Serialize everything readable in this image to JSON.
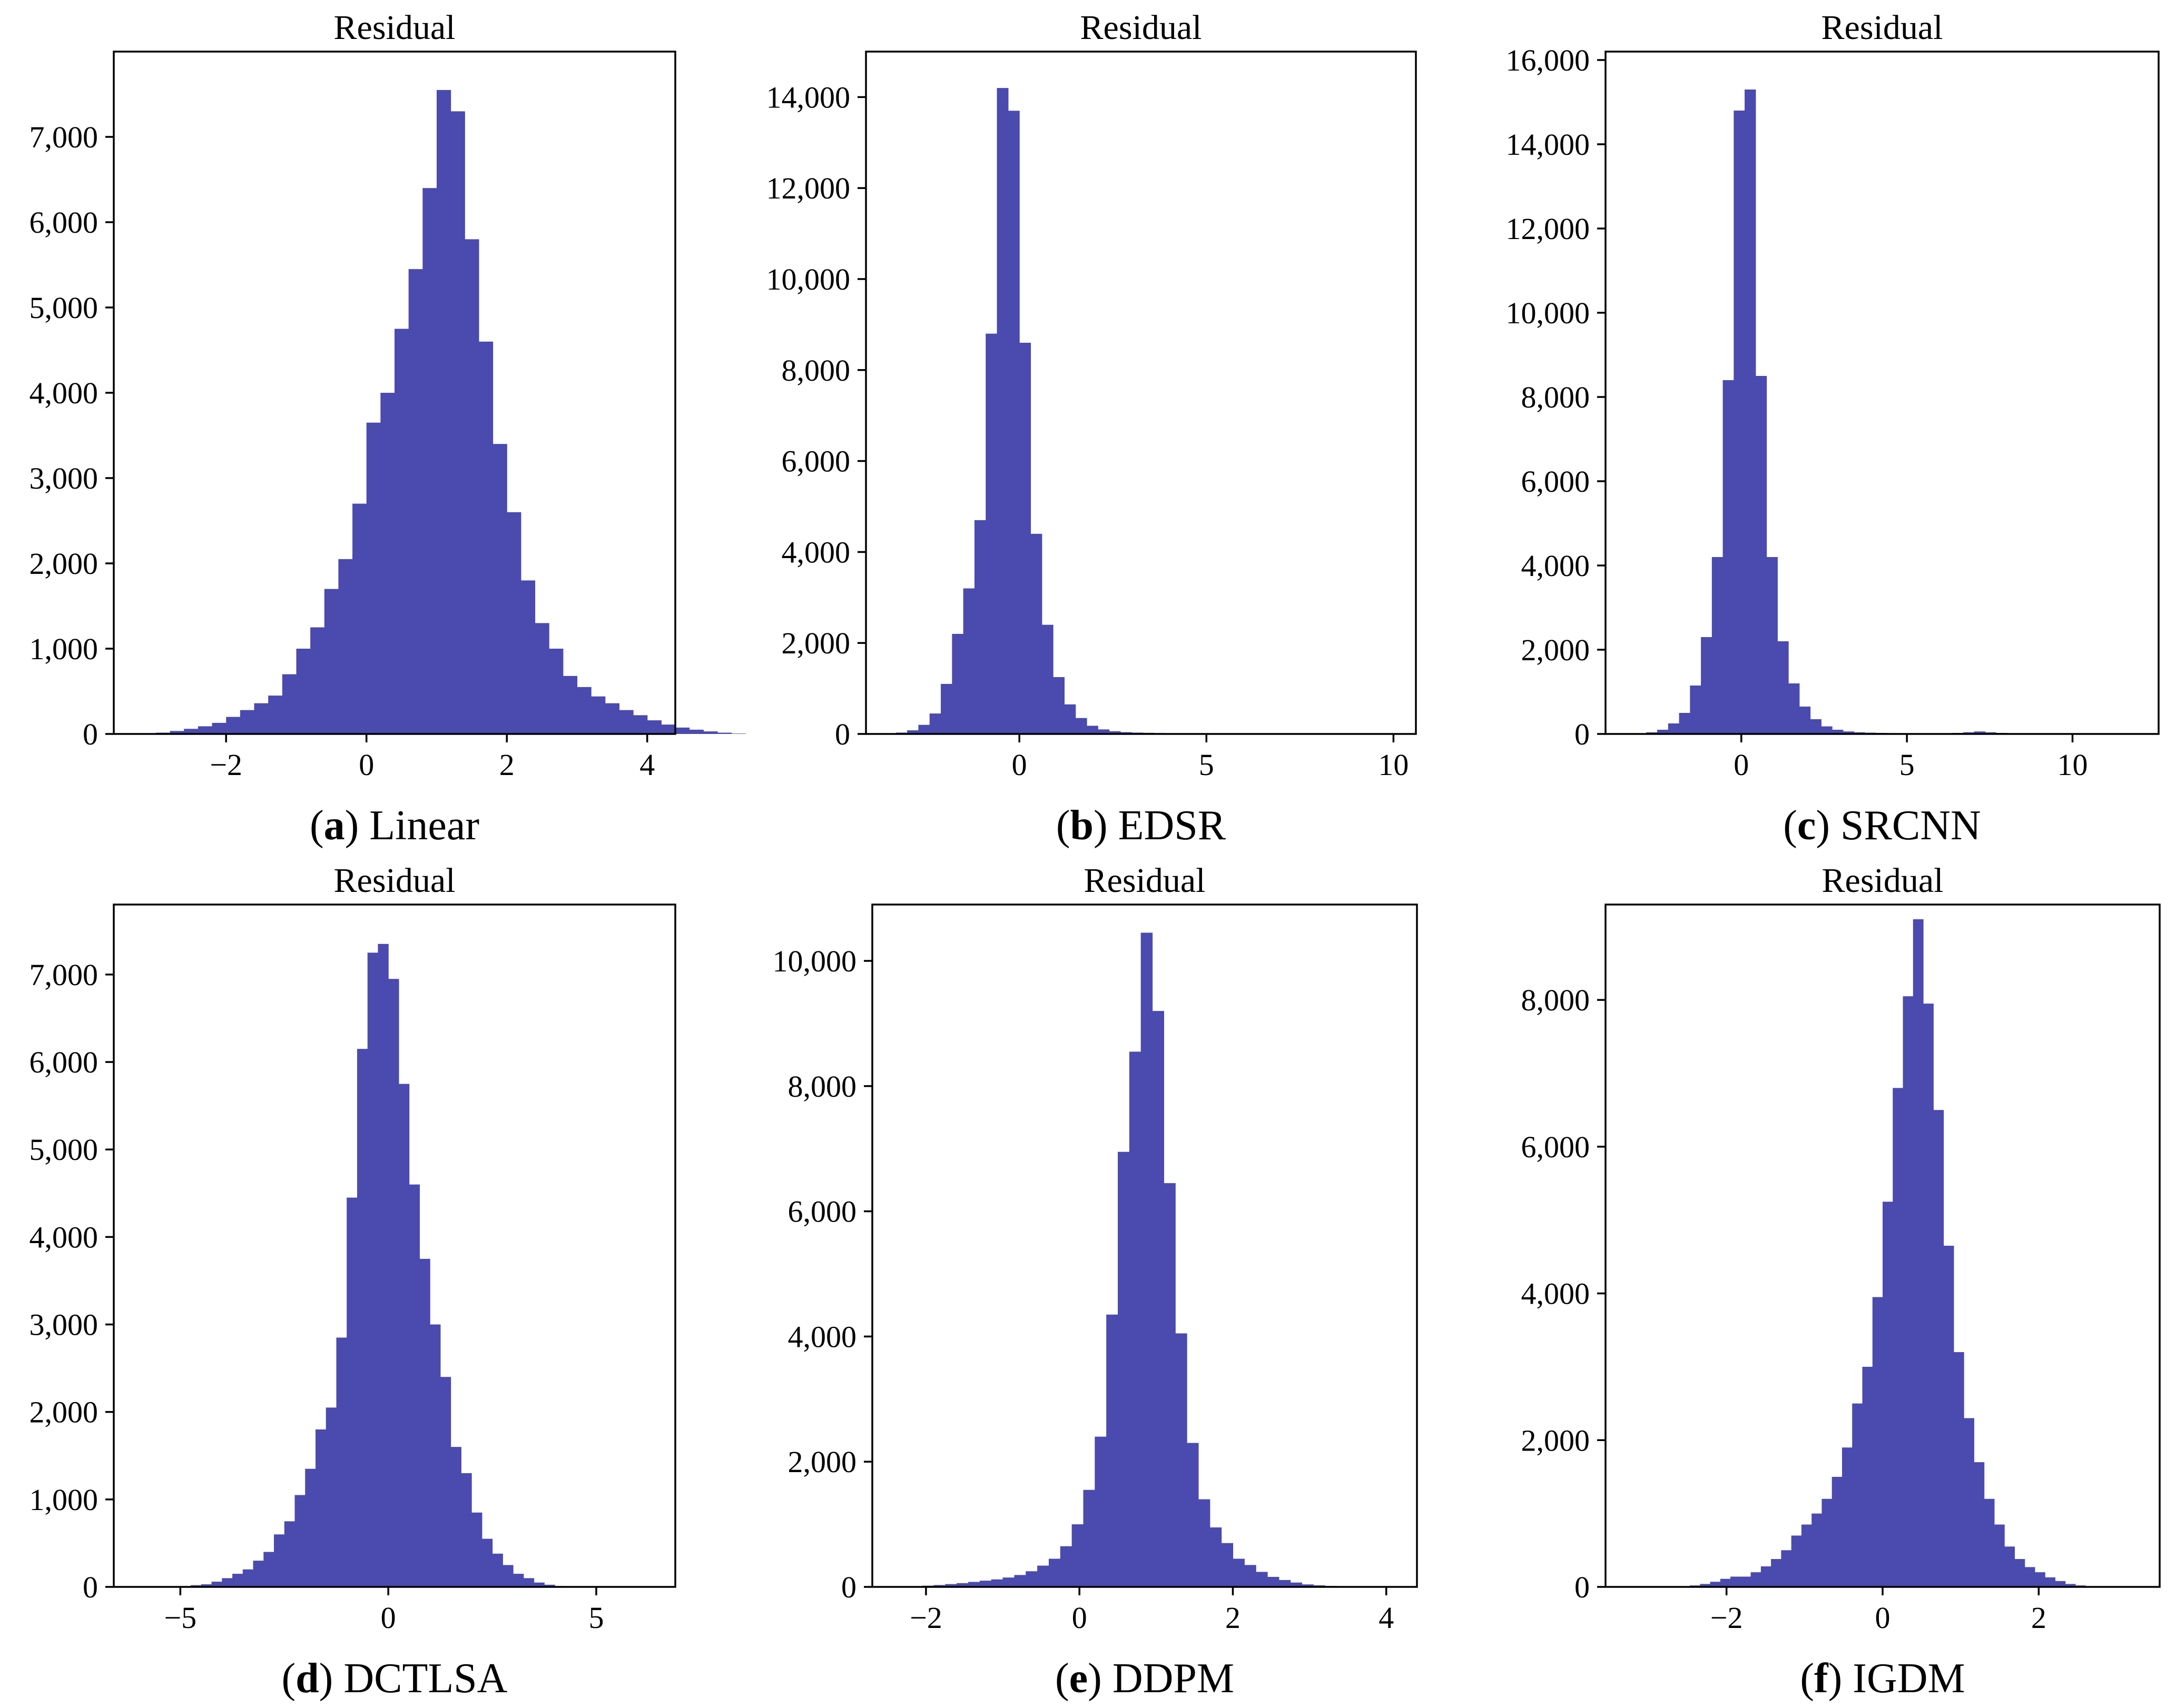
{
  "figure": {
    "panels": [
      {
        "letter": "a",
        "name": "Linear"
      },
      {
        "letter": "b",
        "name": "EDSR"
      },
      {
        "letter": "c",
        "name": "SRCNN"
      },
      {
        "letter": "d",
        "name": "DCTLSA"
      },
      {
        "letter": "e",
        "name": "DDPM"
      },
      {
        "letter": "f",
        "name": "IGDM"
      }
    ]
  },
  "colors": {
    "bar": "#4a4aaf",
    "axis": "#000000"
  },
  "chart_data": [
    {
      "type": "bar",
      "subtype": "histogram",
      "title": "Residual",
      "caption_letter": "a",
      "caption_name": "Linear",
      "xlim": [
        -3.6,
        4.4
      ],
      "ylim": [
        0,
        8000
      ],
      "xticks": [
        -2,
        0,
        2,
        4
      ],
      "xtick_labels": [
        "−2",
        "0",
        "2",
        "4"
      ],
      "yticks": [
        0,
        1000,
        2000,
        3000,
        4000,
        5000,
        6000,
        7000
      ],
      "ytick_labels": [
        "0",
        "1,000",
        "2,000",
        "3,000",
        "4,000",
        "5,000",
        "6,000",
        "7,000"
      ],
      "bin_start": -3.2,
      "bin_width": 0.2,
      "values": [
        5,
        15,
        35,
        60,
        90,
        130,
        200,
        280,
        360,
        450,
        700,
        1000,
        1250,
        1700,
        2050,
        2700,
        3650,
        4000,
        4750,
        5450,
        6400,
        7550,
        7300,
        5800,
        4600,
        3400,
        2600,
        1800,
        1300,
        1000,
        680,
        550,
        440,
        360,
        280,
        220,
        160,
        110,
        75,
        50,
        30,
        15,
        5
      ]
    },
    {
      "type": "bar",
      "subtype": "histogram",
      "title": "Residual",
      "caption_letter": "b",
      "caption_name": "EDSR",
      "xlim": [
        -4.1,
        10.6
      ],
      "ylim": [
        0,
        15000
      ],
      "xticks": [
        0,
        5,
        10
      ],
      "xtick_labels": [
        "0",
        "5",
        "10"
      ],
      "yticks": [
        0,
        2000,
        4000,
        6000,
        8000,
        10000,
        12000,
        14000
      ],
      "ytick_labels": [
        "0",
        "2,000",
        "4,000",
        "6,000",
        "8,000",
        "10,000",
        "12,000",
        "14,000"
      ],
      "bin_start": -3.6,
      "bin_width": 0.3,
      "values": [
        10,
        30,
        80,
        200,
        450,
        1100,
        2200,
        3200,
        4700,
        8800,
        14200,
        13700,
        8600,
        4400,
        2400,
        1250,
        650,
        350,
        180,
        100,
        60,
        40,
        30,
        25,
        20,
        15,
        12,
        10,
        8,
        6,
        5,
        4,
        3,
        3,
        2,
        2,
        2,
        1,
        1,
        1,
        1,
        1,
        1,
        1,
        1,
        1,
        1
      ]
    },
    {
      "type": "bar",
      "subtype": "histogram",
      "title": "Residual",
      "caption_letter": "c",
      "caption_name": "SRCNN",
      "xlim": [
        -4.1,
        12.6
      ],
      "ylim": [
        0,
        16200
      ],
      "xticks": [
        0,
        5,
        10
      ],
      "xtick_labels": [
        "0",
        "5",
        "10"
      ],
      "yticks": [
        0,
        2000,
        4000,
        6000,
        8000,
        10000,
        12000,
        14000,
        16000
      ],
      "ytick_labels": [
        "0",
        "2,000",
        "4,000",
        "6,000",
        "8,000",
        "10,000",
        "12,000",
        "14,000",
        "16,000"
      ],
      "bin_start": -3.2,
      "bin_width": 0.33,
      "values": [
        10,
        40,
        100,
        250,
        500,
        1150,
        2300,
        4200,
        8400,
        14800,
        15300,
        8500,
        4200,
        2200,
        1200,
        650,
        350,
        180,
        100,
        60,
        40,
        30,
        25,
        20,
        15,
        12,
        10,
        10,
        15,
        25,
        40,
        60,
        40,
        25,
        15,
        10,
        6,
        4,
        3,
        2,
        2,
        2,
        1,
        1,
        1,
        1,
        1,
        1
      ]
    },
    {
      "type": "bar",
      "subtype": "histogram",
      "title": "Residual",
      "caption_letter": "d",
      "caption_name": "DCTLSA",
      "xlim": [
        -6.6,
        6.9
      ],
      "ylim": [
        0,
        7800
      ],
      "xticks": [
        -5,
        0,
        5
      ],
      "xtick_labels": [
        "−5",
        "0",
        "5"
      ],
      "yticks": [
        0,
        1000,
        2000,
        3000,
        4000,
        5000,
        6000,
        7000
      ],
      "ytick_labels": [
        "0",
        "1,000",
        "2,000",
        "3,000",
        "4,000",
        "5,000",
        "6,000",
        "7,000"
      ],
      "bin_start": -5.0,
      "bin_width": 0.25,
      "values": [
        10,
        20,
        30,
        60,
        100,
        150,
        200,
        300,
        400,
        600,
        750,
        1050,
        1350,
        1800,
        2050,
        2850,
        4450,
        6150,
        7250,
        7350,
        6950,
        5750,
        4600,
        3750,
        3000,
        2400,
        1600,
        1300,
        850,
        550,
        380,
        250,
        150,
        100,
        50,
        25,
        10
      ]
    },
    {
      "type": "bar",
      "subtype": "histogram",
      "title": "Residual",
      "caption_letter": "e",
      "caption_name": "DDPM",
      "xlim": [
        -2.7,
        4.4
      ],
      "ylim": [
        0,
        10900
      ],
      "xticks": [
        -2,
        0,
        2,
        4
      ],
      "xtick_labels": [
        "−2",
        "0",
        "2",
        "4"
      ],
      "yticks": [
        0,
        2000,
        4000,
        6000,
        8000,
        10000
      ],
      "ytick_labels": [
        "0",
        "2,000",
        "4,000",
        "6,000",
        "8,000",
        "10,000"
      ],
      "bin_start": -2.2,
      "bin_width": 0.15,
      "values": [
        10,
        20,
        30,
        45,
        60,
        80,
        100,
        120,
        150,
        190,
        250,
        340,
        450,
        650,
        1000,
        1550,
        2400,
        4350,
        6950,
        8550,
        10450,
        9200,
        6450,
        4050,
        2300,
        1400,
        950,
        700,
        450,
        350,
        240,
        160,
        110,
        70,
        40,
        25,
        15,
        10
      ]
    },
    {
      "type": "bar",
      "subtype": "histogram",
      "title": "Residual",
      "caption_letter": "f",
      "caption_name": "IGDM",
      "xlim": [
        -3.55,
        3.55
      ],
      "ylim": [
        0,
        9300
      ],
      "xticks": [
        -2,
        0,
        2
      ],
      "xtick_labels": [
        "−2",
        "0",
        "2"
      ],
      "yticks": [
        0,
        2000,
        4000,
        6000,
        8000
      ],
      "ytick_labels": [
        "0",
        "2,000",
        "4,000",
        "6,000",
        "8,000"
      ],
      "bin_start": -2.6,
      "bin_width": 0.13,
      "values": [
        10,
        20,
        40,
        70,
        110,
        140,
        140,
        200,
        280,
        380,
        500,
        700,
        850,
        1000,
        1200,
        1500,
        1900,
        2500,
        3000,
        3950,
        5250,
        6800,
        8050,
        9100,
        7950,
        6500,
        4650,
        3200,
        2300,
        1700,
        1200,
        850,
        550,
        380,
        270,
        200,
        130,
        80,
        40,
        20,
        10
      ]
    }
  ]
}
